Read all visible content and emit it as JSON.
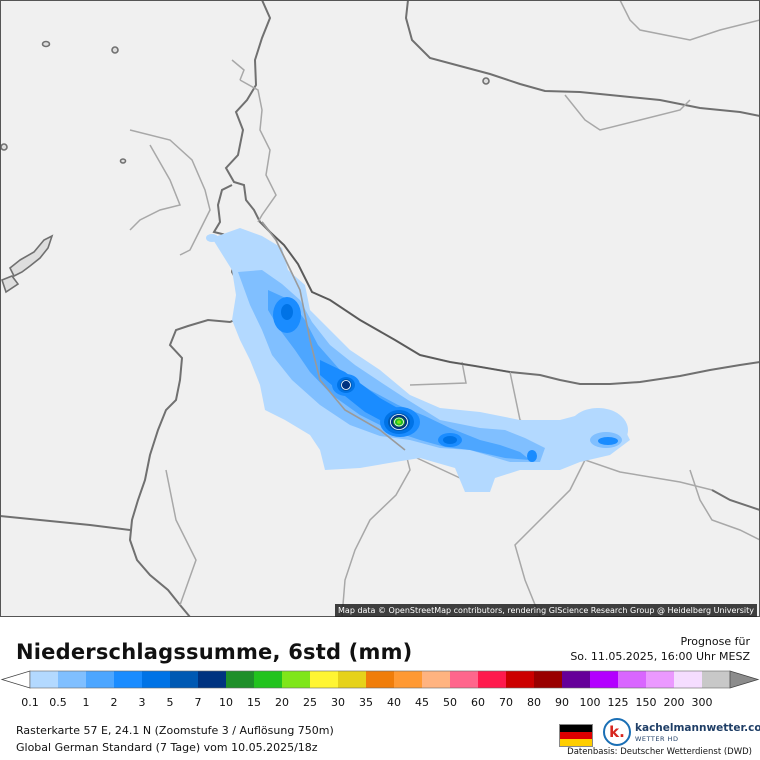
{
  "map": {
    "attribution": "Map data © OpenStreetMap contributors, rendering GIScience Research Group @ Heidelberg University"
  },
  "legend": {
    "title": "Niederschlagssumme, 6std (mm)",
    "forecast_label": "Prognose für",
    "forecast_date": "So. 11.05.2025, 16:00 Uhr MESZ",
    "scale": [
      {
        "label": "0.1",
        "color": "#b3d9ff"
      },
      {
        "label": "0.5",
        "color": "#80bfff"
      },
      {
        "label": "1",
        "color": "#4da6ff"
      },
      {
        "label": "2",
        "color": "#1a8cff"
      },
      {
        "label": "3",
        "color": "#0073e6"
      },
      {
        "label": "5",
        "color": "#0059b3"
      },
      {
        "label": "7",
        "color": "#003380"
      },
      {
        "label": "10",
        "color": "#1f8f2a"
      },
      {
        "label": "15",
        "color": "#22c31e"
      },
      {
        "label": "20",
        "color": "#7fe61a"
      },
      {
        "label": "25",
        "color": "#fff533"
      },
      {
        "label": "30",
        "color": "#e6d21a"
      },
      {
        "label": "35",
        "color": "#f07d0a"
      },
      {
        "label": "40",
        "color": "#ff9933"
      },
      {
        "label": "45",
        "color": "#ffb380"
      },
      {
        "label": "50",
        "color": "#ff668c"
      },
      {
        "label": "60",
        "color": "#ff1a4d"
      },
      {
        "label": "70",
        "color": "#cc0000"
      },
      {
        "label": "80",
        "color": "#990000"
      },
      {
        "label": "90",
        "color": "#660099"
      },
      {
        "label": "100",
        "color": "#b300ff"
      },
      {
        "label": "125",
        "color": "#d966ff"
      },
      {
        "label": "150",
        "color": "#eb99ff"
      },
      {
        "label": "200",
        "color": "#f5ddff"
      },
      {
        "label": "300",
        "color": "#c8c8c8"
      }
    ],
    "info_line1": "Rasterkarte 57 E, 24.1 N (Zoomstufe 3 / Auflösung 750m)",
    "info_line2": "Global German Standard (7 Tage) vom  10.05.2025/18z",
    "brand_name": "kachelmannwetter.com",
    "brand_sub": "WETTER HD",
    "logo_letter": "k.",
    "source": "Datenbasis: Deutscher Wetterdienst (DWD)",
    "flag_colors": [
      "#000000",
      "#dd0000",
      "#ffce00"
    ]
  }
}
